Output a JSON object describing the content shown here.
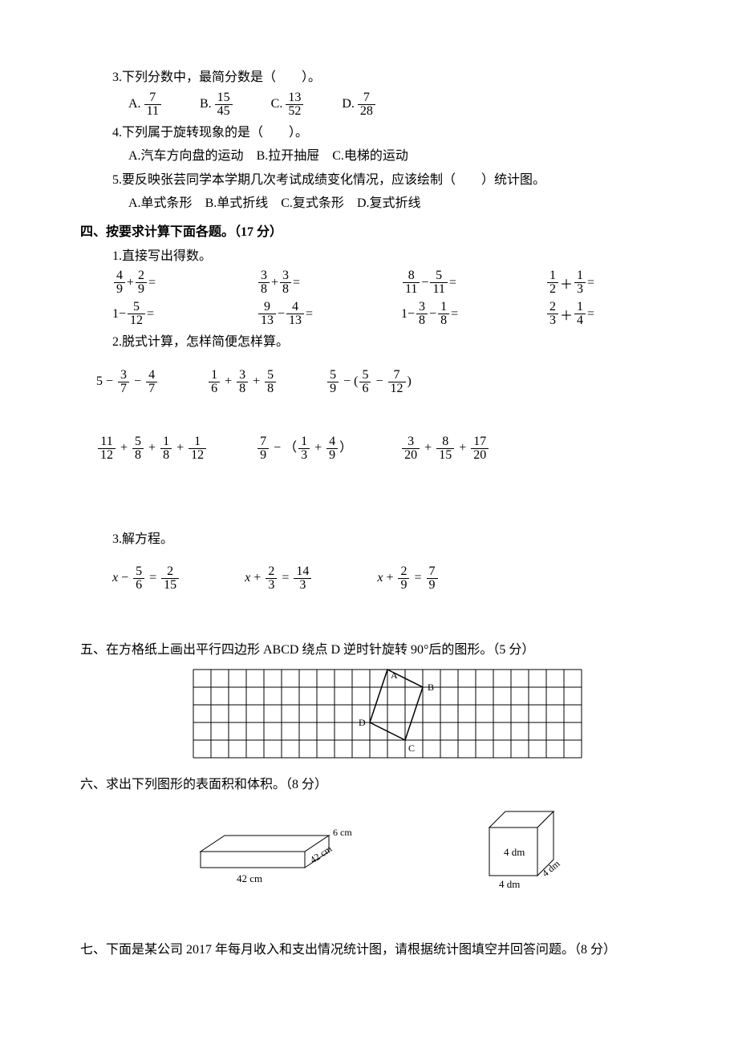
{
  "q3": {
    "stem": "3.下列分数中，最简分数是（　　）。",
    "options": {
      "A": {
        "num": "7",
        "den": "11"
      },
      "B": {
        "num": "15",
        "den": "45"
      },
      "C": {
        "num": "13",
        "den": "52"
      },
      "D": {
        "num": "7",
        "den": "28"
      }
    }
  },
  "q4": {
    "stem": "4.下列属于旋转现象的是（　　）。",
    "A": "A.汽车方向盘的运动",
    "B": "B.拉开抽屉",
    "C": "C.电梯的运动"
  },
  "q5": {
    "stem": "5.要反映张芸同学本学期几次考试成绩变化情况，应该绘制（　　）统计图。",
    "A": "A.单式条形",
    "B": "B.单式折线",
    "C": "C.复式条形",
    "D": "D.复式折线"
  },
  "sec4": {
    "head": "四、按要求计算下面各题。（17 分）",
    "p1": "1.直接写出得数。",
    "r1": {
      "a": {
        "type": "ff",
        "n1": "4",
        "d1": "9",
        "op": "+",
        "n2": "2",
        "d2": "9",
        "tail": " ="
      },
      "b": {
        "type": "ff",
        "n1": "3",
        "d1": "8",
        "op": "+",
        "n2": "3",
        "d2": "8",
        "tail": " ="
      },
      "c": {
        "type": "ff",
        "n1": "8",
        "d1": "11",
        "op": "−",
        "n2": "5",
        "d2": "11",
        "tail": " ="
      },
      "d": {
        "type": "ff",
        "n1": "1",
        "d1": "2",
        "op": "＋",
        "n2": "1",
        "d2": "3",
        "tail": " ="
      }
    },
    "r2": {
      "a": {
        "type": "if",
        "pre": "1−",
        "n1": "5",
        "d1": "12",
        "tail": " ="
      },
      "b": {
        "type": "ff",
        "n1": "9",
        "d1": "13",
        "op": "−",
        "n2": "4",
        "d2": "13",
        "tail": " ="
      },
      "c": {
        "type": "iff",
        "pre": "1−",
        "n1": "3",
        "d1": "8",
        "op": "−",
        "n2": "1",
        "d2": "8",
        "tail": " ="
      },
      "d": {
        "type": "ff",
        "n1": "2",
        "d1": "3",
        "op": "＋",
        "n2": "1",
        "d2": "4",
        "tail": " ="
      }
    },
    "p2": "2.脱式计算，怎样简便怎样算。",
    "long1": {
      "a": {
        "pre": "5 − ",
        "parts": [
          {
            "n": "3",
            "d": "7"
          },
          " − ",
          {
            "n": "4",
            "d": "7"
          }
        ]
      },
      "b": {
        "pre": "",
        "parts": [
          {
            "n": "1",
            "d": "6"
          },
          " + ",
          {
            "n": "3",
            "d": "8"
          },
          " + ",
          {
            "n": "5",
            "d": "8"
          }
        ]
      },
      "c": {
        "pre": "",
        "parts": [
          {
            "n": "5",
            "d": "9"
          },
          " − (",
          {
            "n": "5",
            "d": "6"
          },
          " − ",
          {
            "n": "7",
            "d": "12"
          },
          ")"
        ]
      }
    },
    "long2": {
      "a": {
        "pre": "",
        "parts": [
          {
            "n": "11",
            "d": "12"
          },
          " + ",
          {
            "n": "5",
            "d": "8"
          },
          " + ",
          {
            "n": "1",
            "d": "8"
          },
          " + ",
          {
            "n": "1",
            "d": "12"
          }
        ]
      },
      "b": {
        "pre": "",
        "parts": [
          {
            "n": "7",
            "d": "9"
          },
          " − （",
          {
            "n": "1",
            "d": "3"
          },
          " + ",
          {
            "n": "4",
            "d": "9"
          },
          "）"
        ]
      },
      "c": {
        "pre": "",
        "parts": [
          {
            "n": "3",
            "d": "20"
          },
          " + ",
          {
            "n": "8",
            "d": "15"
          },
          " + ",
          {
            "n": "17",
            "d": "20"
          }
        ]
      }
    },
    "p3": "3.解方程。",
    "eqs": {
      "a": {
        "lhs_pre": "x − ",
        "l": {
          "n": "5",
          "d": "6"
        },
        "mid": " = ",
        "r": {
          "n": "2",
          "d": "15"
        }
      },
      "b": {
        "lhs_pre": "x + ",
        "l": {
          "n": "2",
          "d": "3"
        },
        "mid": " = ",
        "r": {
          "n": "14",
          "d": "3"
        }
      },
      "c": {
        "lhs_pre": "x + ",
        "l": {
          "n": "2",
          "d": "9"
        },
        "mid": " = ",
        "r": {
          "n": "7",
          "d": "9"
        }
      }
    }
  },
  "sec5": {
    "head": "五、在方格纸上画出平行四边形 ABCD 绕点 D 逆时针旋转 90°后的图形。（5 分）",
    "grid": {
      "cols": 22,
      "rows": 5,
      "cell": 22,
      "D": [
        10,
        4
      ],
      "A": [
        11,
        1
      ],
      "B": [
        13,
        2
      ],
      "C": [
        12,
        5
      ],
      "labels": {
        "A": "A",
        "B": "B",
        "C": "C",
        "D": "D"
      }
    }
  },
  "sec6": {
    "head": "六、求出下列图形的表面积和体积。（8 分）",
    "cuboid": {
      "l": "42 cm",
      "w": "42 cm",
      "h": "6 cm"
    },
    "cube": {
      "e1": "4 dm",
      "e2": "4 dm",
      "e3": "4 dm"
    }
  },
  "sec7": {
    "head": "七、下面是某公司 2017 年每月收入和支出情况统计图，请根据统计图填空并回答问题。（8 分）"
  },
  "colors": {
    "text": "#000000",
    "bg": "#ffffff",
    "grid_line": "#000000"
  }
}
